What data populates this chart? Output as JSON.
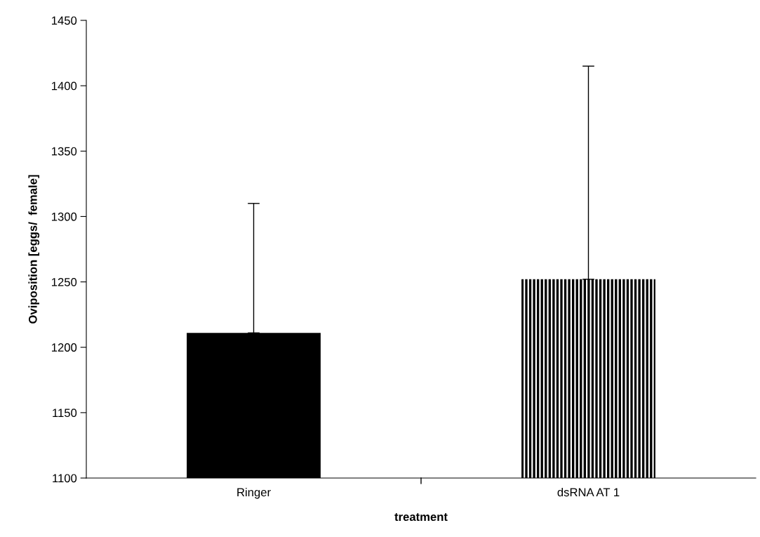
{
  "chart_data": {
    "type": "bar",
    "xlabel": "treatment",
    "ylabel": "Oviposition [eggs/  female]",
    "categories": [
      "Ringer",
      "dsRNA AT 1"
    ],
    "values": [
      1211,
      1252
    ],
    "errors": [
      [
        1211,
        1310
      ],
      [
        1252,
        1415
      ]
    ],
    "colors": [
      "#000000",
      "#000000"
    ],
    "ylim": [
      1100,
      1450
    ],
    "yticks": [
      1100,
      1150,
      1200,
      1250,
      1300,
      1350,
      1400,
      1450
    ],
    "grid": false
  }
}
